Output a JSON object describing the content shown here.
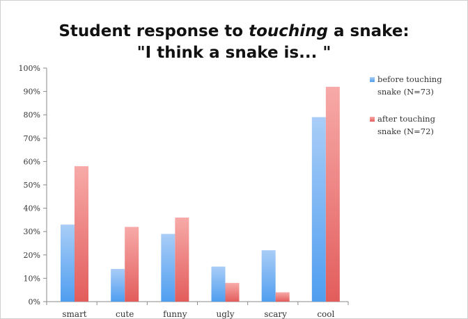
{
  "chart_data": {
    "type": "bar",
    "title_line1_prefix": "Student response to ",
    "title_line1_emphasis": "touching",
    "title_line1_suffix": " a snake:",
    "title_line2": "\"I think a snake is... \"",
    "categories": [
      "smart",
      "cute",
      "funny",
      "ugly",
      "scary",
      "cool"
    ],
    "series": [
      {
        "name": "before touching snake (N=73)",
        "legend_lines": [
          "before touching",
          "snake (N=73)"
        ],
        "values": [
          33,
          14,
          29,
          15,
          22,
          79
        ],
        "color_top": "#a9cdf7",
        "color_bottom": "#4f9ef0"
      },
      {
        "name": "after touching snake (N=72)",
        "legend_lines": [
          "after touching",
          "snake (N=72)"
        ],
        "values": [
          58,
          32,
          36,
          8,
          4,
          92
        ],
        "color_top": "#f7aaa8",
        "color_bottom": "#e25d5c"
      }
    ],
    "y_ticks": [
      "0%",
      "10%",
      "20%",
      "30%",
      "40%",
      "50%",
      "60%",
      "70%",
      "80%",
      "90%",
      "100%"
    ],
    "ylim": [
      0,
      100
    ],
    "grid": false,
    "legend_position": "right"
  }
}
